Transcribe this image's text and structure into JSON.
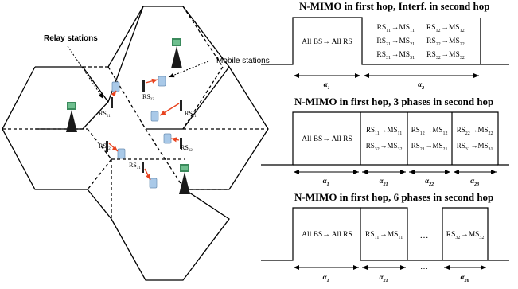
{
  "network": {
    "relay_label": "Relay stations",
    "mobile_label": "Mobile stations",
    "rs_labels": [
      {
        "base": "RS",
        "sub": "11"
      },
      {
        "base": "RS",
        "sub": "22"
      },
      {
        "base": "RS",
        "sub": "21"
      },
      {
        "base": "RS",
        "sub": "12"
      },
      {
        "base": "RS",
        "sub": "12"
      },
      {
        "base": "RS",
        "sub": "31"
      }
    ]
  },
  "timing": [
    {
      "title": "N-MIMO in first hop, Interf. in second hop",
      "first_slot": "All BS→ All RS",
      "second_slot_lines": [
        [
          {
            "base": "RS",
            "sub": "11"
          },
          {
            "arrow": "→"
          },
          {
            "base": "MS",
            "sub": "11"
          },
          {
            "gap": true
          },
          {
            "base": "RS",
            "sub": "12"
          },
          {
            "arrow": "→"
          },
          {
            "base": "MS",
            "sub": "12"
          }
        ],
        [
          {
            "base": "RS",
            "sub": "21"
          },
          {
            "arrow": "→"
          },
          {
            "base": "MS",
            "sub": "21"
          },
          {
            "gap": true
          },
          {
            "base": "RS",
            "sub": "22"
          },
          {
            "arrow": "→"
          },
          {
            "base": "MS",
            "sub": "22"
          }
        ],
        [
          {
            "base": "RS",
            "sub": "31"
          },
          {
            "arrow": "→"
          },
          {
            "base": "MS",
            "sub": "31"
          },
          {
            "gap": true
          },
          {
            "base": "RS",
            "sub": "32"
          },
          {
            "arrow": "→"
          },
          {
            "base": "MS",
            "sub": "32"
          }
        ]
      ],
      "durations": [
        {
          "base": "α",
          "sub": "1"
        },
        {
          "base": "α",
          "sub": "2"
        }
      ]
    },
    {
      "title": "N-MIMO in first hop, 3 phases in second hop",
      "first_slot": "All BS→ All RS",
      "phase_slots": [
        [
          [
            {
              "base": "RS",
              "sub": "11"
            },
            {
              "arrow": "→"
            },
            {
              "base": "MS",
              "sub": "11"
            }
          ],
          [
            {
              "base": "RS",
              "sub": "32"
            },
            {
              "arrow": "→"
            },
            {
              "base": "MS",
              "sub": "32"
            }
          ]
        ],
        [
          [
            {
              "base": "RS",
              "sub": "12"
            },
            {
              "arrow": "→"
            },
            {
              "base": "MS",
              "sub": "12"
            }
          ],
          [
            {
              "base": "RS",
              "sub": "21"
            },
            {
              "arrow": "→"
            },
            {
              "base": "MS",
              "sub": "21"
            }
          ]
        ],
        [
          [
            {
              "base": "RS",
              "sub": "22"
            },
            {
              "arrow": "→"
            },
            {
              "base": "MS",
              "sub": "22"
            }
          ],
          [
            {
              "base": "RS",
              "sub": "31"
            },
            {
              "arrow": "→"
            },
            {
              "base": "MS",
              "sub": "31"
            }
          ]
        ]
      ],
      "durations": [
        {
          "base": "α",
          "sub": "1"
        },
        {
          "base": "α",
          "sub": "21"
        },
        {
          "base": "α",
          "sub": "22"
        },
        {
          "base": "α",
          "sub": "23"
        }
      ]
    },
    {
      "title": "N-MIMO in first hop, 6 phases in second hop",
      "first_slot": "All BS→ All RS",
      "slot_a": [
        {
          "base": "RS",
          "sub": "11"
        },
        {
          "arrow": "→"
        },
        {
          "base": "MS",
          "sub": "11"
        }
      ],
      "ellipsis": "…",
      "slot_b": [
        {
          "base": "RS",
          "sub": "32"
        },
        {
          "arrow": "→"
        },
        {
          "base": "MS",
          "sub": "32"
        }
      ],
      "durations": [
        {
          "base": "α",
          "sub": "1"
        },
        {
          "base": "α",
          "sub": "21"
        },
        {
          "text": "…"
        },
        {
          "base": "α",
          "sub": "26"
        }
      ]
    }
  ],
  "colors": {
    "line": "#000000",
    "arrow_red": "#e8431e",
    "tower_green": "#3b8a5c",
    "ms_blue": "#a9c9e8"
  }
}
